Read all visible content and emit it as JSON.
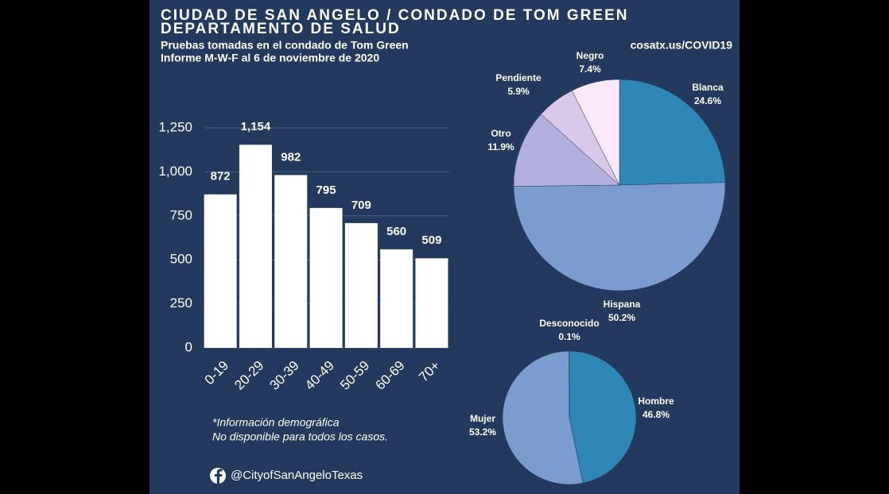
{
  "header": {
    "title_lines": [
      "CIUDAD DE SAN ANGELO / CONDADO DE TOM GREEN",
      "DEPARTAMENTO DE SALUD"
    ],
    "subtitle_lines": [
      "Pruebas tomadas en el condado de Tom Green",
      "Informe M-W-F al 6 de noviembre de 2020"
    ],
    "url": "cosatx.us/COVID19"
  },
  "chart_data": [
    {
      "type": "bar",
      "categories": [
        "0-19",
        "20-29",
        "30-39",
        "40-49",
        "50-59",
        "60-69",
        "70+"
      ],
      "values": [
        872,
        1154,
        982,
        795,
        709,
        560,
        509
      ],
      "value_labels": [
        "872",
        "1,154",
        "982",
        "795",
        "709",
        "560",
        "509"
      ],
      "color": "#ffffff",
      "ylim": [
        0,
        1250
      ],
      "yticks": [
        0,
        250,
        500,
        750,
        {
          "value": 1000,
          "label": "1,000"
        },
        {
          "value": 1250,
          "label": "1,250"
        }
      ],
      "grid": true
    },
    {
      "type": "pie",
      "categories": [
        "Blanca",
        "Hispana",
        "Otro",
        "Pendiente",
        "Negro"
      ],
      "values": [
        24.6,
        50.2,
        11.9,
        5.9,
        7.4
      ],
      "value_labels": [
        "24.6%",
        "50.2%",
        "11.9%",
        "5.9%",
        "7.4%"
      ],
      "colors": [
        "#2e86b5",
        "#7b9ccf",
        "#b3b0de",
        "#d9c8ea",
        "#fbe8fb"
      ]
    },
    {
      "type": "pie",
      "categories": [
        "Hombre",
        "Mujer",
        "Desconocido"
      ],
      "values": [
        46.8,
        53.2,
        0.1
      ],
      "value_labels": [
        "46.8%",
        "53.2%",
        "0.1%"
      ],
      "colors": [
        "#2e86b5",
        "#7b9ccf",
        "#ffffff"
      ]
    }
  ],
  "footnote": {
    "lines": [
      "*Información demográfica",
      "No disponible para todos los casos."
    ]
  },
  "social": {
    "handle": "@CityofSanAngeloTexas"
  }
}
